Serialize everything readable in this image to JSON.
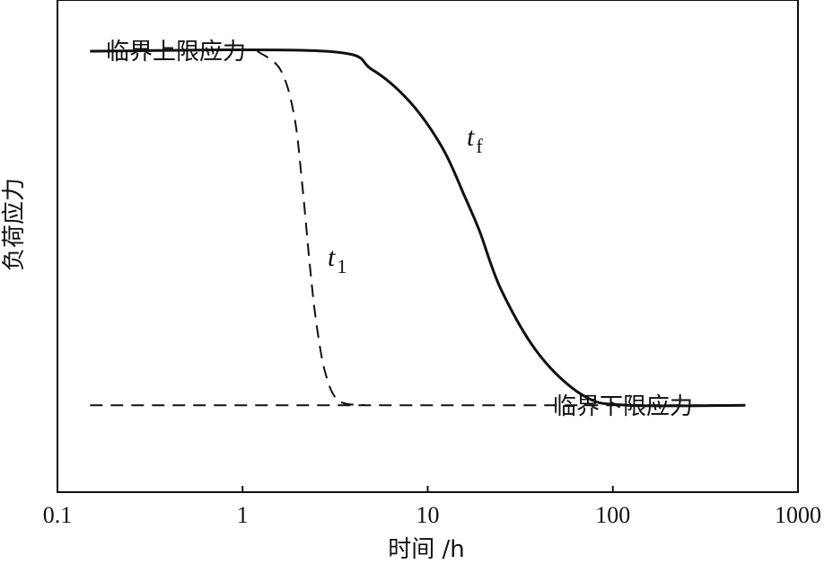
{
  "chart_data": {
    "type": "line",
    "title": "",
    "xlabel": "时间 /h",
    "ylabel": "负荷应力",
    "x_scale": "log",
    "xlim": [
      0.1,
      1000
    ],
    "x_ticks": [
      0.1,
      1,
      10,
      100,
      1000
    ],
    "x_tick_labels": [
      "0.1",
      "1",
      "10",
      "100",
      "1000"
    ],
    "y_ticks": [],
    "y_tick_labels": [],
    "ylim": [
      0,
      1
    ],
    "grid": false,
    "legend": "none",
    "series": [
      {
        "label": "t_f",
        "style": "solid",
        "color": "#111111",
        "x": [
          0.15,
          2.8,
          5,
          8,
          12,
          16,
          19,
          25,
          40,
          70,
          120,
          520
        ],
        "y": [
          0.92,
          0.92,
          0.88,
          0.81,
          0.71,
          0.6,
          0.53,
          0.4,
          0.26,
          0.17,
          0.15,
          0.15
        ]
      },
      {
        "label": "t_1",
        "style": "dashed",
        "color": "#111111",
        "x": [
          1.2,
          1.6,
          1.9,
          2.1,
          2.3,
          2.5,
          2.8,
          3.3,
          4.6
        ],
        "y": [
          0.92,
          0.88,
          0.78,
          0.63,
          0.46,
          0.33,
          0.22,
          0.16,
          0.15
        ]
      },
      {
        "label": "临界下限应力",
        "style": "dashed",
        "color": "#111111",
        "x": [
          0.15,
          520
        ],
        "y": [
          0.15,
          0.15
        ]
      }
    ],
    "annotations": {
      "upper_limit": "临界上限应力",
      "lower_limit": "临界下限应力",
      "tf": {
        "main": "t",
        "sub": "f"
      },
      "t1": {
        "main": "t",
        "sub": "1"
      }
    }
  }
}
